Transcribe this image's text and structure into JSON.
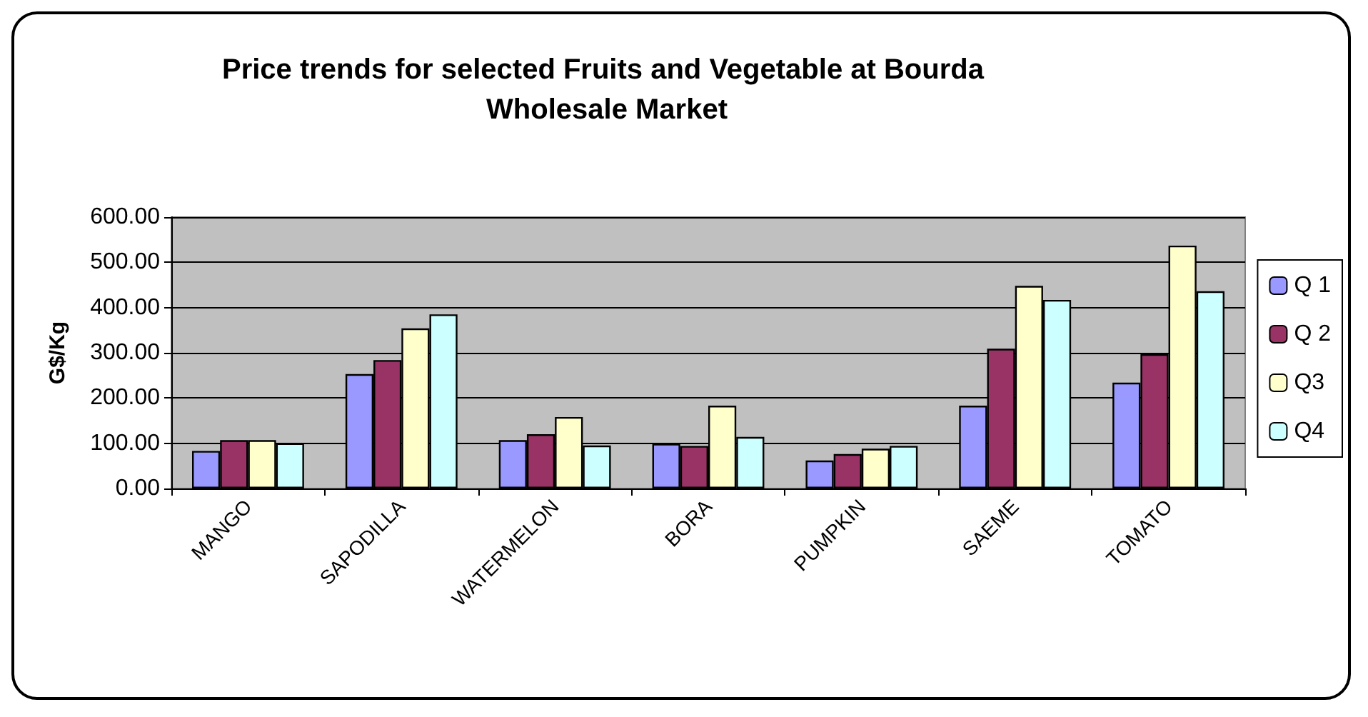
{
  "chart_data": {
    "type": "bar",
    "title": "Price trends for selected Fruits and Vegetable at Bourda Wholesale Market",
    "ylabel": "G$/Kg",
    "categories": [
      "MANGO",
      "SAPODILLA",
      "WATERMELON",
      "BORA",
      "PUMPKIN",
      "SAEME",
      "TOMATO"
    ],
    "series": [
      {
        "name": "Q 1",
        "color": "#9999ff",
        "values": [
          83,
          253,
          107,
          99,
          62,
          183,
          234
        ]
      },
      {
        "name": "Q 2",
        "color": "#993366",
        "values": [
          107,
          284,
          120,
          94,
          76,
          309,
          297
        ]
      },
      {
        "name": "Q3",
        "color": "#ffffcc",
        "values": [
          107,
          354,
          158,
          183,
          88,
          448,
          537
        ]
      },
      {
        "name": "Q4",
        "color": "#ccffff",
        "values": [
          100,
          385,
          95,
          114,
          94,
          417,
          436
        ]
      }
    ],
    "ylim": [
      0,
      600
    ],
    "yticks": [
      {
        "value": 0,
        "label": "0.00"
      },
      {
        "value": 100,
        "label": "100.00"
      },
      {
        "value": 200,
        "label": "200.00"
      },
      {
        "value": 300,
        "label": "300.00"
      },
      {
        "value": 400,
        "label": "400.00"
      },
      {
        "value": 500,
        "label": "500.00"
      },
      {
        "value": 600,
        "label": "600.00"
      }
    ],
    "grid": "y",
    "legend": "right"
  }
}
